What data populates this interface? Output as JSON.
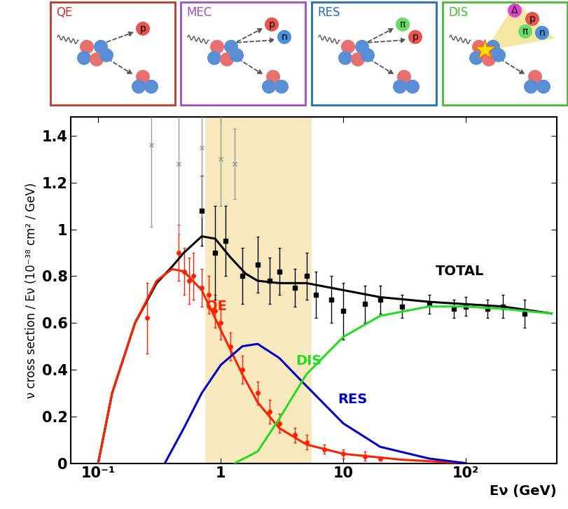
{
  "chart_data": {
    "type": "line",
    "x_label": "Eν (GeV)",
    "y_label": "ν cross section / Eν (10⁻³⁸ cm² / GeV)",
    "log": "x",
    "grid": false,
    "xlim": [
      0.06,
      550
    ],
    "xticks": [
      {
        "value": 0.1,
        "label": "10⁻¹"
      },
      {
        "value": 1,
        "label": "1"
      },
      {
        "value": 10,
        "label": "10"
      },
      {
        "value": 100,
        "label": "10²"
      }
    ],
    "ylim": [
      0,
      1.48
    ],
    "yticks": [
      0,
      0.2,
      0.4,
      0.6,
      0.8,
      1,
      1.2,
      1.4
    ],
    "band": [
      0.75,
      5.5
    ],
    "series": [
      {
        "name": "TOTAL",
        "type": "line",
        "color": "#000000",
        "x": [
          0.1,
          0.13,
          0.2,
          0.3,
          0.4,
          0.5,
          0.7,
          0.9,
          1.2,
          1.6,
          2,
          3,
          5,
          10,
          20,
          50,
          100,
          200,
          500
        ],
        "values": [
          0,
          0.3,
          0.6,
          0.77,
          0.84,
          0.9,
          0.97,
          0.96,
          0.88,
          0.81,
          0.78,
          0.77,
          0.77,
          0.74,
          0.71,
          0.69,
          0.68,
          0.67,
          0.64
        ]
      },
      {
        "name": "QE",
        "type": "line",
        "color": "#ff2200",
        "x": [
          0.1,
          0.13,
          0.2,
          0.3,
          0.4,
          0.5,
          0.7,
          1,
          1.5,
          2,
          3,
          5,
          10,
          30,
          100
        ],
        "values": [
          0,
          0.3,
          0.6,
          0.78,
          0.83,
          0.82,
          0.74,
          0.57,
          0.38,
          0.26,
          0.15,
          0.08,
          0.04,
          0.015,
          0
        ]
      },
      {
        "name": "RES",
        "type": "line",
        "color": "#0000cc",
        "x": [
          0.35,
          0.5,
          0.7,
          1,
          1.5,
          2,
          3,
          5,
          10,
          20,
          50,
          100
        ],
        "values": [
          0,
          0.15,
          0.3,
          0.42,
          0.5,
          0.51,
          0.45,
          0.33,
          0.17,
          0.07,
          0.02,
          0
        ]
      },
      {
        "name": "DIS",
        "type": "line",
        "color": "#22dd22",
        "x": [
          1.3,
          2,
          3,
          5,
          10,
          20,
          50,
          100,
          200,
          500
        ],
        "values": [
          0,
          0.05,
          0.19,
          0.38,
          0.54,
          0.63,
          0.67,
          0.67,
          0.66,
          0.64
        ]
      },
      {
        "type": "scatter",
        "color": "#ff2200",
        "marker": "circle",
        "x": [
          0.25,
          0.45,
          0.5,
          0.55,
          0.6,
          0.7,
          0.8,
          0.9,
          1,
          1.2,
          1.5,
          2,
          2.5,
          3,
          4,
          5,
          7,
          10,
          15,
          20
        ],
        "values": [
          0.62,
          0.9,
          0.82,
          0.78,
          0.8,
          0.75,
          0.72,
          0.65,
          0.6,
          0.5,
          0.4,
          0.3,
          0.22,
          0.17,
          0.12,
          0.09,
          0.06,
          0.04,
          0.03,
          0.02
        ],
        "errors": [
          0.15,
          0.12,
          0.1,
          0.1,
          0.1,
          0.08,
          0.08,
          0.07,
          0.07,
          0.06,
          0.06,
          0.05,
          0.05,
          0.04,
          0.03,
          0.03,
          0.02,
          0.02,
          0.02,
          0.01
        ]
      },
      {
        "type": "scatter",
        "color": "#000000",
        "marker": "square",
        "x": [
          0.7,
          0.9,
          1.1,
          1.5,
          2,
          2.5,
          3,
          4,
          5,
          6,
          8,
          10,
          15,
          20,
          30,
          50,
          80,
          100,
          150,
          200,
          300
        ],
        "values": [
          1.08,
          0.9,
          0.95,
          0.8,
          0.85,
          0.78,
          0.82,
          0.75,
          0.8,
          0.72,
          0.7,
          0.65,
          0.68,
          0.7,
          0.67,
          0.68,
          0.66,
          0.67,
          0.66,
          0.67,
          0.64
        ],
        "errors": [
          0.15,
          0.2,
          0.15,
          0.12,
          0.12,
          0.1,
          0.1,
          0.08,
          0.1,
          0.1,
          0.1,
          0.12,
          0.08,
          0.06,
          0.05,
          0.04,
          0.04,
          0.04,
          0.04,
          0.05,
          0.06
        ]
      },
      {
        "type": "scatter",
        "color": "#999999",
        "marker": "x",
        "x": [
          0.27,
          0.45,
          0.7,
          1.0,
          1.3
        ],
        "values": [
          1.36,
          1.28,
          1.35,
          1.3,
          1.28
        ],
        "errors": [
          0.35,
          0.3,
          0.3,
          0.2,
          0.15
        ]
      }
    ]
  },
  "panels": [
    {
      "label": "QE",
      "color": "#c0392b",
      "particles": [
        {
          "label": "p",
          "color": "#e8544e"
        }
      ]
    },
    {
      "label": "MEC",
      "color": "#a050c0",
      "particles": [
        {
          "label": "p",
          "color": "#e8544e"
        },
        {
          "label": "n",
          "color": "#4a90d9"
        }
      ]
    },
    {
      "label": "RES",
      "color": "#1f6fb5",
      "particles": [
        {
          "label": "π",
          "color": "#66dd66"
        },
        {
          "label": "p",
          "color": "#e8544e"
        }
      ]
    },
    {
      "label": "DIS",
      "color": "#44bb33",
      "particles": [
        {
          "label": "Δ",
          "color": "#dd44cc"
        },
        {
          "label": "p",
          "color": "#e8544e"
        },
        {
          "label": "π",
          "color": "#66dd66"
        },
        {
          "label": "n",
          "color": "#4a90d9"
        }
      ]
    }
  ]
}
